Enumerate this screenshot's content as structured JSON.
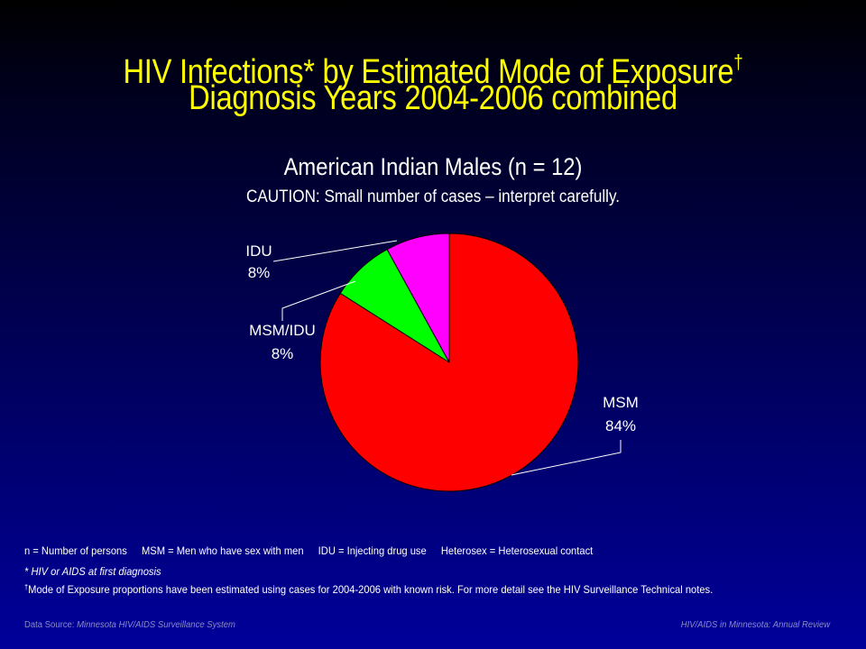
{
  "title": {
    "line1": "HIV Infections* by Estimated Mode of Exposure",
    "line1_mark": "†",
    "line2": "Diagnosis Years 2004-2006 combined"
  },
  "subtitle": "American Indian Males (n = 12)",
  "caution": "CAUTION: Small number of cases – interpret carefully.",
  "chart_data": {
    "type": "pie",
    "slices": [
      {
        "label": "MSM",
        "value": 84,
        "pct_label": "84%",
        "color": "#ff0000"
      },
      {
        "label": "MSM/IDU",
        "value": 8,
        "pct_label": "8%",
        "color": "#00ff00"
      },
      {
        "label": "IDU",
        "value": 8,
        "pct_label": "8%",
        "color": "#ff00ff"
      }
    ],
    "start": "12 o'clock",
    "direction": "clockwise"
  },
  "definitions": [
    "n = Number of persons",
    "MSM = Men who have sex with men",
    "IDU = Injecting drug use",
    "Heterosex = Heterosexual contact"
  ],
  "notes": {
    "star": "* HIV or AIDS at first diagnosis",
    "dagger_mark": "†",
    "dagger": " Mode of Exposure proportions have been estimated using cases for 2004-2006  with known risk. For more detail see the HIV Surveillance Technical notes."
  },
  "footer": {
    "left_label": "Data Source: ",
    "left_source": "Minnesota HIV/AIDS Surveillance  System",
    "right": "HIV/AIDS in Minnesota: Annual Review"
  },
  "colors": {
    "title": "#ffff00",
    "text": "#ffffff",
    "footer": "#8a8ac8",
    "background_top": "#000000",
    "background_bottom": "#00009a"
  }
}
